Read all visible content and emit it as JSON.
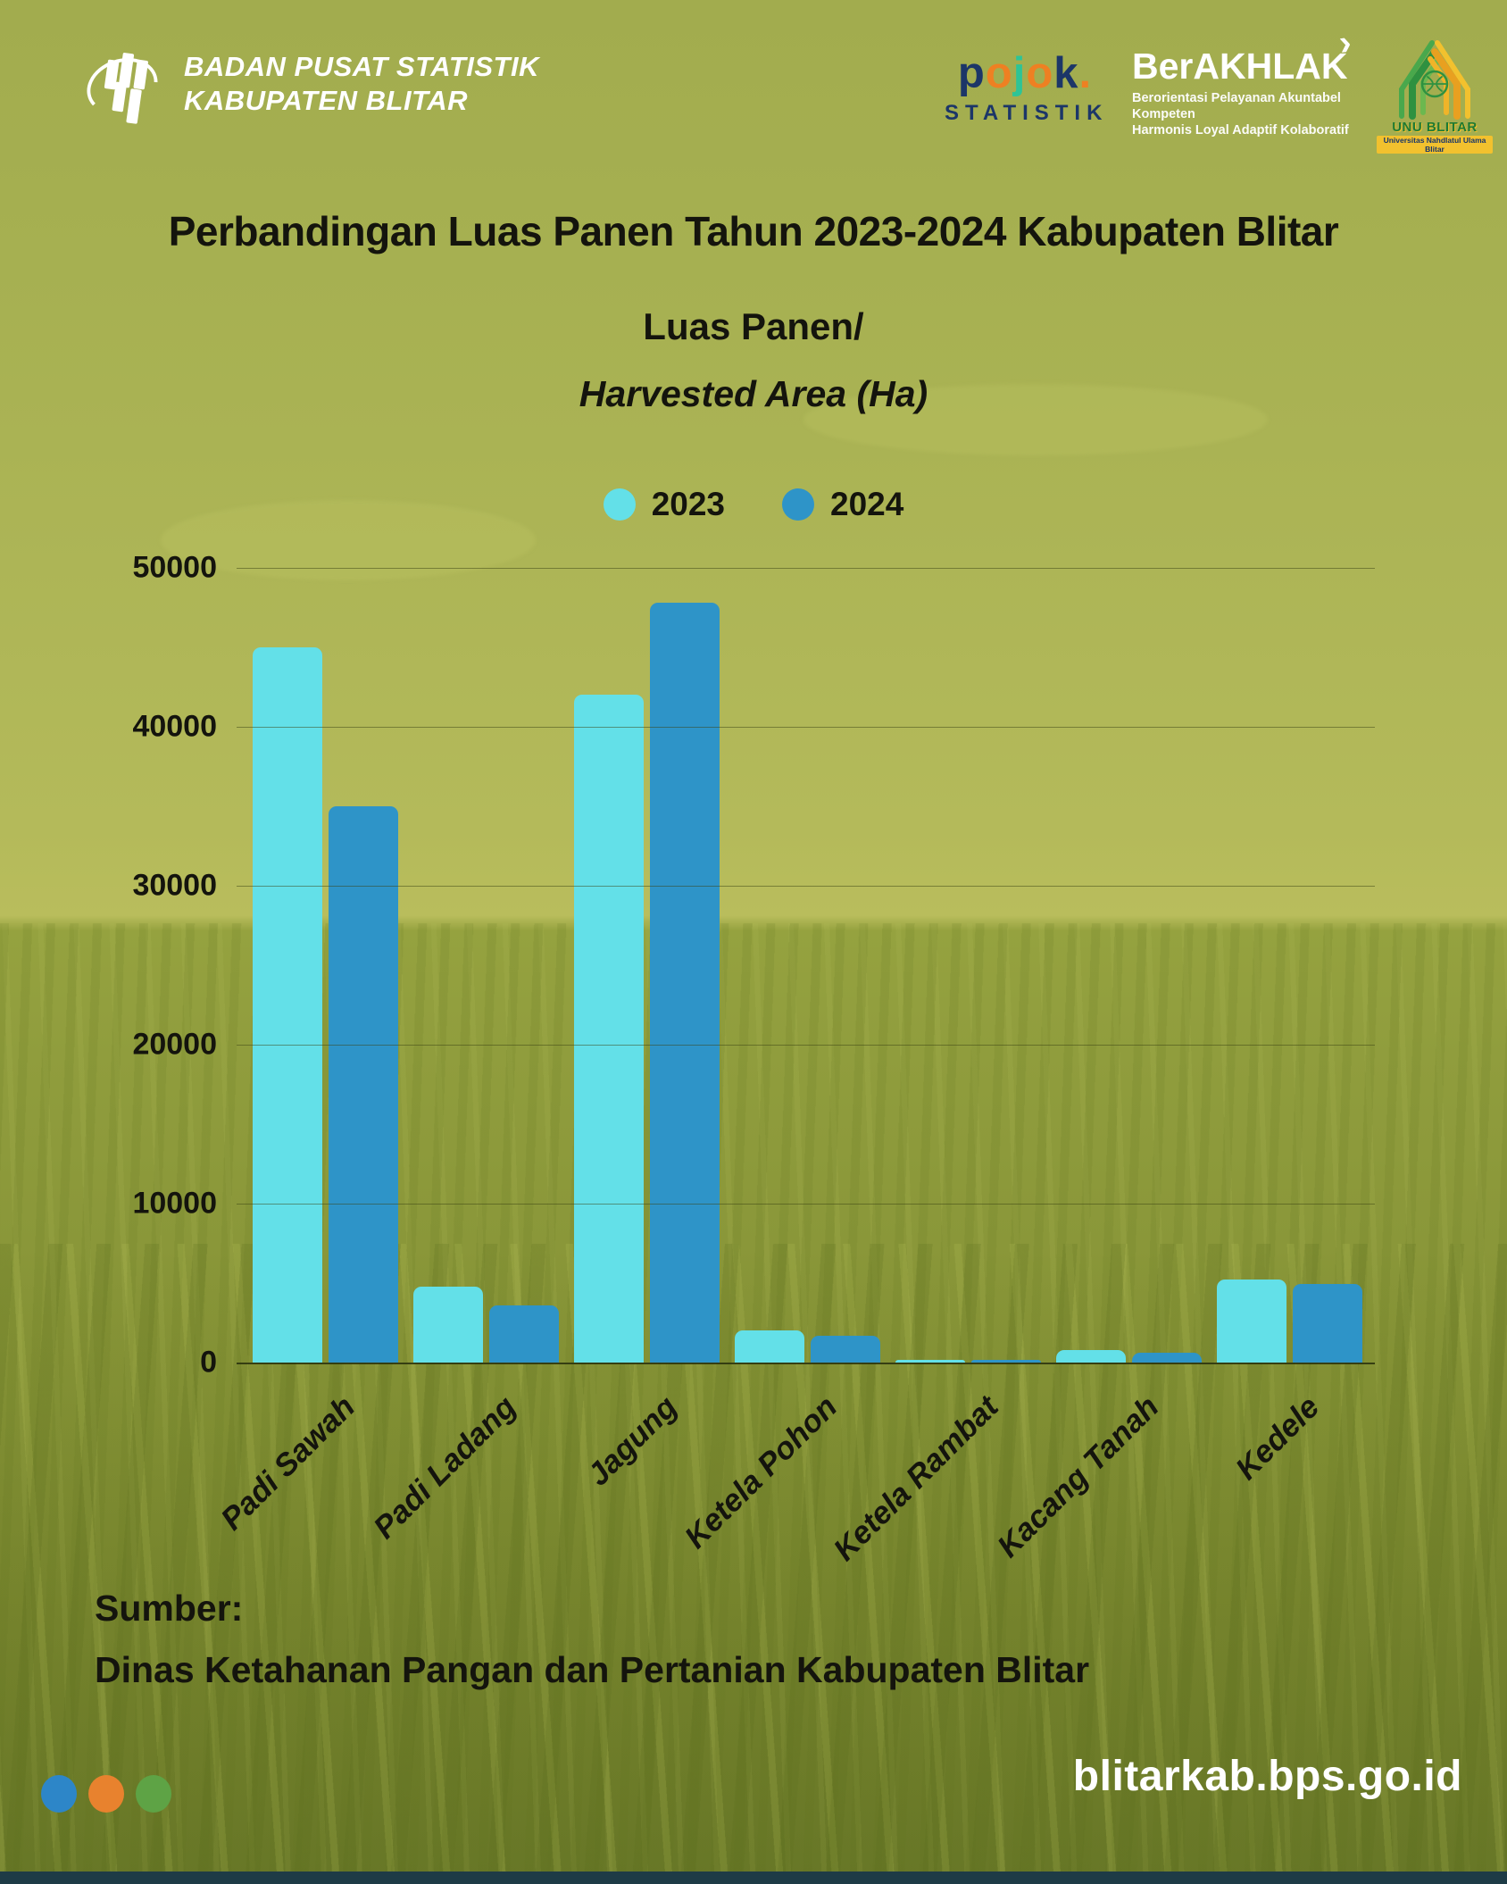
{
  "header": {
    "org_line1": "BADAN PUSAT STATISTIK",
    "org_line2": "KABUPATEN BLITAR",
    "pojok": {
      "letters": [
        {
          "ch": "p",
          "color": "#1c3668"
        },
        {
          "ch": "o",
          "color": "#ee8022"
        },
        {
          "ch": "j",
          "color": "#2ec496"
        },
        {
          "ch": "o",
          "color": "#ee8022"
        },
        {
          "ch": "k",
          "color": "#1c3668"
        },
        {
          "ch": ".",
          "color": "#ee8022"
        }
      ],
      "sub": "STATISTIK"
    },
    "berakhlak": {
      "title": "BerAKHLAK",
      "arrow": "›",
      "tagline1": "Berorientasi Pelayanan Akuntabel Kompeten",
      "tagline2": "Harmonis Loyal Adaptif Kolaboratif"
    },
    "unu": {
      "name": "UNU BLITAR",
      "sub": "Universitas Nahdlatul Ulama Blitar"
    }
  },
  "title": "Perbandingan Luas Panen Tahun 2023-2024 Kabupaten Blitar",
  "subtitle": "Luas Panen/",
  "subtitle_italic": "Harvested Area (Ha)",
  "chart_data": {
    "type": "bar",
    "title": "Luas Panen / Harvested Area (Ha)",
    "categories": [
      "Padi Sawah",
      "Padi Ladang",
      "Jagung",
      "Ketela Pohon",
      "Ketela Rambat",
      "Kacang Tanah",
      "Kedele"
    ],
    "series": [
      {
        "name": "2023",
        "color": "#63e0e8",
        "values": [
          45000,
          4800,
          42000,
          2000,
          100,
          800,
          5200
        ]
      },
      {
        "name": "2024",
        "color": "#2e94c8",
        "values": [
          35000,
          3600,
          47800,
          1700,
          150,
          600,
          4950
        ]
      }
    ],
    "ylim": [
      0,
      50000
    ],
    "yticks": [
      0,
      10000,
      20000,
      30000,
      40000,
      50000
    ],
    "grid": true,
    "legend_position": "top"
  },
  "source": {
    "label": "Sumber:",
    "text": "Dinas Ketahanan Pangan dan Pertanian Kabupaten Blitar"
  },
  "footer": {
    "url": "blitarkab.bps.go.id",
    "dots": [
      "#2d86c8",
      "#e8822e",
      "#5ea345"
    ]
  }
}
